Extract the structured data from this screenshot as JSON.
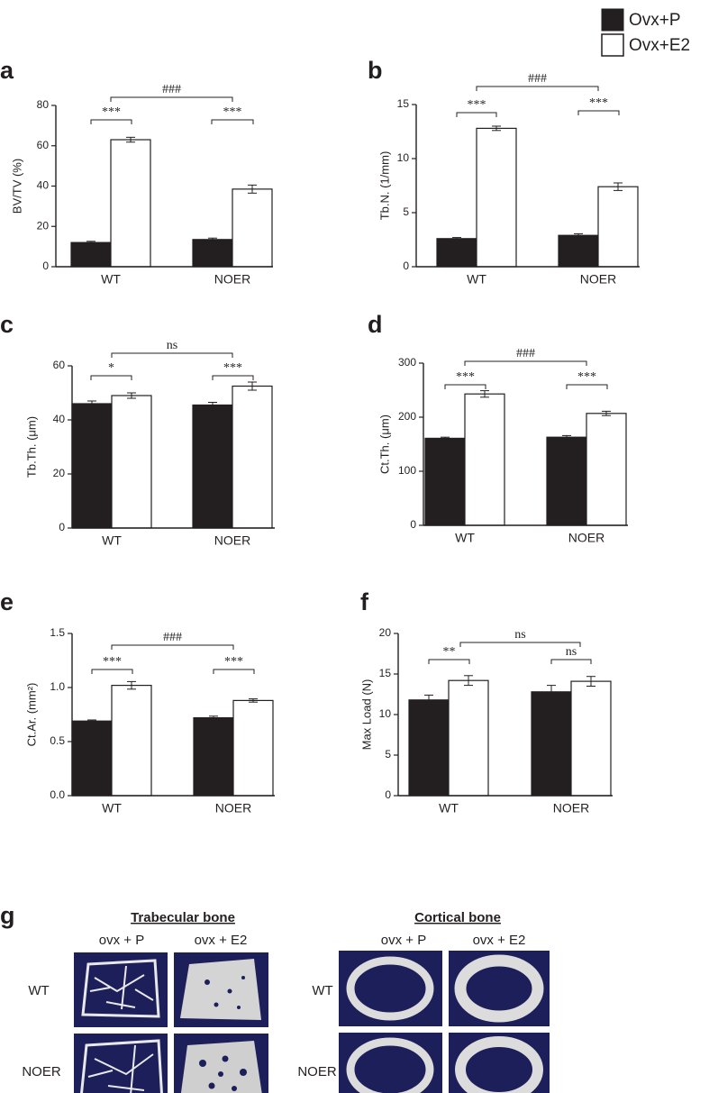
{
  "chart_data": [
    {
      "type": "bar",
      "label": "a",
      "y_label": "BV/TV (%)",
      "categories": [
        "WT",
        "NOER"
      ],
      "series": [
        {
          "name": "Ovx+P",
          "color": "#231f20",
          "values": [
            12,
            13.5
          ],
          "errors": [
            0.6,
            0.7
          ]
        },
        {
          "name": "Ovx+E2",
          "color": "#ffffff",
          "values": [
            63,
            38.5
          ],
          "errors": [
            1.2,
            2
          ]
        }
      ],
      "ylim": [
        0,
        80
      ],
      "yticks": [
        0,
        20,
        40,
        60,
        80
      ],
      "annotations": [
        "***",
        "***",
        "###"
      ]
    },
    {
      "type": "bar",
      "label": "b",
      "y_label": "Tb.N. (1/mm)",
      "categories": [
        "WT",
        "NOER"
      ],
      "series": [
        {
          "name": "Ovx+P",
          "color": "#231f20",
          "values": [
            2.6,
            2.9
          ],
          "errors": [
            0.1,
            0.15
          ]
        },
        {
          "name": "Ovx+E2",
          "color": "#ffffff",
          "values": [
            12.8,
            7.4
          ],
          "errors": [
            0.2,
            0.35
          ]
        }
      ],
      "ylim": [
        0,
        15
      ],
      "yticks": [
        0,
        5,
        10,
        15
      ],
      "annotations": [
        "***",
        "***",
        "###"
      ]
    },
    {
      "type": "bar",
      "label": "c",
      "y_label": "Tb.Th. (μm)",
      "categories": [
        "WT",
        "NOER"
      ],
      "series": [
        {
          "name": "Ovx+P",
          "color": "#231f20",
          "values": [
            46,
            45.5
          ],
          "errors": [
            1,
            1
          ]
        },
        {
          "name": "Ovx+E2",
          "color": "#ffffff",
          "values": [
            49,
            52.5
          ],
          "errors": [
            1,
            1.5
          ]
        }
      ],
      "ylim": [
        0,
        60
      ],
      "yticks": [
        0,
        20,
        40,
        60
      ],
      "annotations": [
        "*",
        "***",
        "ns"
      ]
    },
    {
      "type": "bar",
      "label": "d",
      "y_label": "Ct.Th. (μm)",
      "categories": [
        "WT",
        "NOER"
      ],
      "series": [
        {
          "name": "Ovx+P",
          "color": "#231f20",
          "values": [
            161,
            163
          ],
          "errors": [
            2,
            3
          ]
        },
        {
          "name": "Ovx+E2",
          "color": "#ffffff",
          "values": [
            243,
            207
          ],
          "errors": [
            6,
            4
          ]
        }
      ],
      "ylim": [
        0,
        300
      ],
      "yticks": [
        0,
        100,
        200,
        300
      ],
      "annotations": [
        "***",
        "***",
        "###"
      ]
    },
    {
      "type": "bar",
      "label": "e",
      "y_label": "Ct.Ar. (mm²)",
      "categories": [
        "WT",
        "NOER"
      ],
      "series": [
        {
          "name": "Ovx+P",
          "color": "#231f20",
          "values": [
            0.69,
            0.72
          ],
          "errors": [
            0.01,
            0.015
          ]
        },
        {
          "name": "Ovx+E2",
          "color": "#ffffff",
          "values": [
            1.02,
            0.88
          ],
          "errors": [
            0.035,
            0.015
          ]
        }
      ],
      "ylim": [
        0,
        1.5
      ],
      "yticks": [
        {
          "value": 0,
          "label": "0.0"
        },
        {
          "value": 0.5,
          "label": "0.5"
        },
        {
          "value": 1,
          "label": "1.0"
        },
        {
          "value": 1.5,
          "label": "1.5"
        }
      ],
      "annotations": [
        "***",
        "***",
        "###"
      ]
    },
    {
      "type": "bar",
      "label": "f",
      "y_label": "Max Load (N)",
      "categories": [
        "WT",
        "NOER"
      ],
      "series": [
        {
          "name": "Ovx+P",
          "color": "#231f20",
          "values": [
            11.8,
            12.8
          ],
          "errors": [
            0.6,
            0.8
          ]
        },
        {
          "name": "Ovx+E2",
          "color": "#ffffff",
          "values": [
            14.2,
            14.1
          ],
          "errors": [
            0.6,
            0.6
          ]
        }
      ],
      "ylim": [
        0,
        20
      ],
      "yticks": [
        0,
        5,
        10,
        15,
        20
      ],
      "annotations": [
        "**",
        "ns",
        "ns"
      ]
    }
  ],
  "panel_g": {
    "label": "g",
    "groups": [
      {
        "title": "Trabecular bone",
        "columns": [
          "ovx + P",
          "ovx + E2"
        ],
        "rows": [
          "WT",
          "NOER"
        ]
      },
      {
        "title": "Cortical bone",
        "columns": [
          "ovx + P",
          "ovx + E2"
        ],
        "rows": [
          "WT",
          "NOER"
        ]
      }
    ]
  }
}
